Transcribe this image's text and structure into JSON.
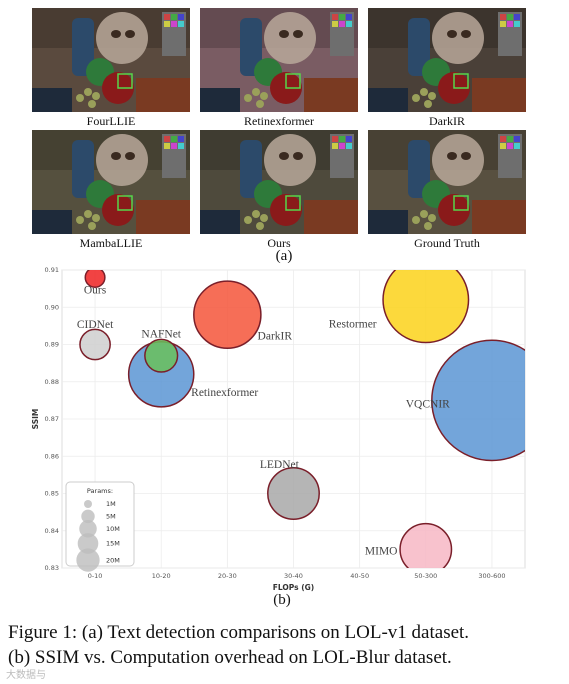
{
  "panel_a": {
    "images": [
      {
        "label": "FourLLIE",
        "tint": "#5a4a3e"
      },
      {
        "label": "Retinexformer",
        "tint": "#7a5c63"
      },
      {
        "label": "DarkIR",
        "tint": "#4a4038"
      },
      {
        "label": "MambaLLIE",
        "tint": "#55503e"
      },
      {
        "label": "Ours",
        "tint": "#4e4a3c"
      },
      {
        "label": "Ground Truth",
        "tint": "#585040"
      }
    ],
    "sublabel": "(a)"
  },
  "panel_b": {
    "sublabel": "(b)"
  },
  "caption": {
    "line1": "Figure 1: (a) Text detection comparisons on LOL-v1 dataset.",
    "line2": "(b) SSIM vs. Computation overhead on LOL-Blur dataset."
  },
  "watermark": "大数据与",
  "chart_data": {
    "type": "scatter",
    "xlabel": "FLOPs (G)",
    "ylabel": "SSIM",
    "categories": [
      "0-10",
      "10-20",
      "20-30",
      "30-40",
      "40-50",
      "50-300",
      "300-600"
    ],
    "ylim": [
      0.83,
      0.91
    ],
    "yticks": [
      0.83,
      0.84,
      0.85,
      0.86,
      0.87,
      0.88,
      0.89,
      0.9,
      0.91
    ],
    "grid": true,
    "points": [
      {
        "name": "Ours",
        "x": "0-10",
        "y": 0.908,
        "params_M": 0.5,
        "color": "#ee2222"
      },
      {
        "name": "CIDNet",
        "x": "0-10",
        "y": 0.89,
        "params_M": 2,
        "color": "#cfcfcf"
      },
      {
        "name": "NAFNet",
        "x": "10-20",
        "y": 0.887,
        "params_M": 2.5,
        "color": "#6abf5a"
      },
      {
        "name": "Retinexformer",
        "x": "10-20",
        "y": 0.882,
        "params_M": 14,
        "color": "#5b95d3"
      },
      {
        "name": "DarkIR",
        "x": "20-30",
        "y": 0.898,
        "params_M": 15,
        "color": "#f4553a"
      },
      {
        "name": "Restormer",
        "x": "50-300",
        "y": 0.902,
        "params_M": 26,
        "color": "#fcd21a"
      },
      {
        "name": "VQCNIR",
        "x": "300-600",
        "y": 0.875,
        "params_M": 55,
        "color": "#5b95d3"
      },
      {
        "name": "LEDNet",
        "x": "30-40",
        "y": 0.85,
        "params_M": 8,
        "color": "#a8a8a8"
      },
      {
        "name": "MIMO",
        "x": "50-300",
        "y": 0.835,
        "params_M": 8,
        "color": "#f7b7c4"
      }
    ],
    "legend": {
      "title": "Params:",
      "entries": [
        {
          "label": "1M",
          "M": 1
        },
        {
          "label": "5M",
          "M": 5
        },
        {
          "label": "10M",
          "M": 10
        },
        {
          "label": "15M",
          "M": 15
        },
        {
          "label": "20M",
          "M": 20
        }
      ],
      "placement": "bottom-left"
    }
  }
}
